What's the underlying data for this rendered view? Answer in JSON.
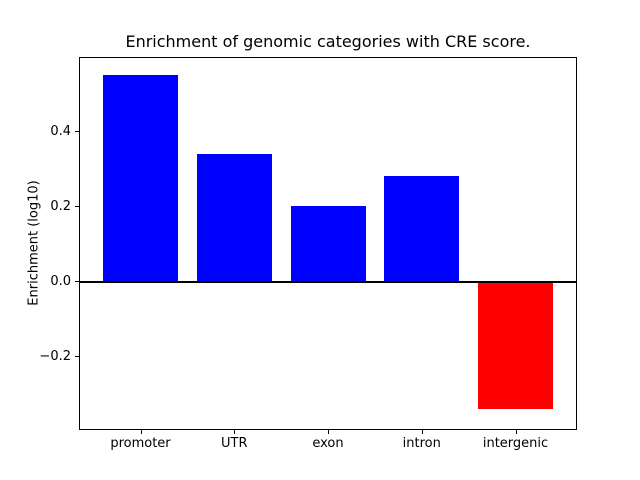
{
  "chart_data": {
    "type": "bar",
    "title": "Enrichment of genomic categories with CRE score.",
    "ylabel": "Enrichment (log10)",
    "xlabel": "",
    "categories": [
      "promoter",
      "UTR",
      "exon",
      "intron",
      "intergenic"
    ],
    "values": [
      0.55,
      0.34,
      0.2,
      0.28,
      -0.34
    ],
    "bar_colors": [
      "#0000ff",
      "#0000ff",
      "#0000ff",
      "#0000ff",
      "#ff0000"
    ],
    "positive_color": "#0000ff",
    "negative_color": "#ff0000",
    "yticks": [
      {
        "value": 0.4,
        "label": "0.4"
      },
      {
        "value": 0.2,
        "label": "0.2"
      },
      {
        "value": 0.0,
        "label": "0.0"
      },
      {
        "value": -0.2,
        "label": "−0.2"
      }
    ],
    "ylim": [
      -0.39,
      0.6
    ],
    "zero_line": true,
    "grid": false,
    "legend": null,
    "spine_color": "#000000",
    "background_color": "#ffffff"
  }
}
